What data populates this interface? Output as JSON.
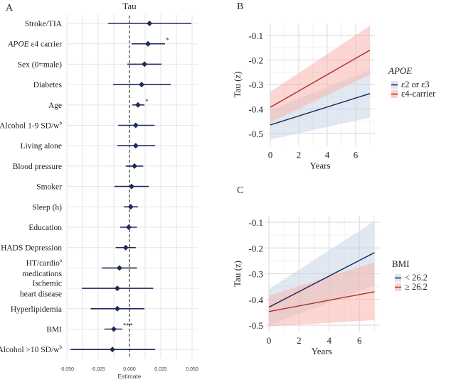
{
  "chart_data": [
    {
      "panel": "A",
      "type": "forest",
      "title": "Tau",
      "xlabel": "Estimate",
      "xlim": [
        -0.05,
        0.05
      ],
      "xticks": [
        "-0.050",
        "-0.025",
        "0.000",
        "0.025",
        "0.050"
      ],
      "xtick_values": [
        -0.05,
        -0.025,
        0,
        0.025,
        0.05
      ],
      "reference_line": 0,
      "grid": true,
      "point_color": "#1f2a5c",
      "rows": [
        {
          "label": [
            "Stroke/TIA"
          ],
          "estimate": 0.016,
          "lower": -0.017,
          "upper": 0.0495,
          "sig": ""
        },
        {
          "label_italic": "APOE",
          "label": [
            " ε4 carrier"
          ],
          "estimate": 0.0148,
          "lower": 0.0017,
          "upper": 0.0284,
          "sig": "*"
        },
        {
          "label": [
            "Sex (0=male)"
          ],
          "estimate": 0.012,
          "lower": -0.0017,
          "upper": 0.0256,
          "sig": ""
        },
        {
          "label": [
            "Diabetes"
          ],
          "estimate": 0.0097,
          "lower": -0.013,
          "upper": 0.033,
          "sig": ""
        },
        {
          "label": [
            "Age"
          ],
          "estimate": 0.0068,
          "lower": 0.0023,
          "upper": 0.012,
          "sig": "*"
        },
        {
          "label": [
            "Alcohol 1-9 SD/w"
          ],
          "sup": "b",
          "estimate": 0.005,
          "lower": -0.009,
          "upper": 0.02,
          "sig": ""
        },
        {
          "label": [
            "Living alone"
          ],
          "estimate": 0.005,
          "lower": -0.0097,
          "upper": 0.0205,
          "sig": ""
        },
        {
          "label": [
            "Blood pressure"
          ],
          "estimate": 0.004,
          "lower": -0.003,
          "upper": 0.011,
          "sig": ""
        },
        {
          "label": [
            "Smoker"
          ],
          "estimate": 0.0017,
          "lower": -0.012,
          "upper": 0.0153,
          "sig": ""
        },
        {
          "label": [
            "Sleep (h)"
          ],
          "estimate": 0.001,
          "lower": -0.0045,
          "upper": 0.0068,
          "sig": ""
        },
        {
          "label": [
            "Education"
          ],
          "estimate": -0.0006,
          "lower": -0.0074,
          "upper": 0.006,
          "sig": ""
        },
        {
          "label": [
            "HADS Depression"
          ],
          "estimate": -0.003,
          "lower": -0.011,
          "upper": 0.005,
          "sig": ""
        },
        {
          "label": [
            "HT/cardio",
            "medications"
          ],
          "sup": "a",
          "estimate": -0.008,
          "lower": -0.022,
          "upper": 0.006,
          "sig": ""
        },
        {
          "label": [
            "Ischemic",
            "heart disease"
          ],
          "estimate": -0.0097,
          "lower": -0.038,
          "upper": 0.019,
          "sig": ""
        },
        {
          "label": [
            "Hyperlipidemia"
          ],
          "estimate": -0.0097,
          "lower": -0.031,
          "upper": 0.012,
          "sig": ""
        },
        {
          "label": [
            "BMI"
          ],
          "estimate": -0.0125,
          "lower": -0.02,
          "upper": -0.0057,
          "sig": "***"
        },
        {
          "label": [
            "Alcohol >10 SD/w"
          ],
          "sup": "b",
          "estimate": -0.0136,
          "lower": -0.047,
          "upper": 0.0205,
          "sig": ""
        }
      ]
    },
    {
      "panel": "B",
      "type": "line",
      "xlabel": "Years",
      "ylabel": "Tau (z)",
      "xlim": [
        0,
        7
      ],
      "ylim": [
        -0.55,
        -0.05
      ],
      "xticks": [
        "0",
        "2",
        "4",
        "6"
      ],
      "yticks": [
        "-0.1",
        "-0.2",
        "-0.3",
        "-0.4",
        "-0.5"
      ],
      "grid": true,
      "legend_title": "APOE",
      "legend_title_italic": true,
      "legend_position": "right",
      "series": [
        {
          "name": "ε2 or ε3",
          "color": "#1f2a5c",
          "ribbon_color": "#c9d6e8",
          "x": [
            0,
            7
          ],
          "y": [
            -0.465,
            -0.337
          ],
          "lower": [
            -0.525,
            -0.435
          ],
          "upper": [
            -0.405,
            -0.24
          ]
        },
        {
          "name": "ε4-carrier",
          "color": "#b03a2e",
          "ribbon_color": "#f7b5ad",
          "x": [
            0,
            7
          ],
          "y": [
            -0.393,
            -0.16
          ],
          "lower": [
            -0.455,
            -0.26
          ],
          "upper": [
            -0.33,
            -0.06
          ]
        }
      ]
    },
    {
      "panel": "C",
      "type": "line",
      "xlabel": "Years",
      "ylabel": "Tau (z)",
      "xlim": [
        0,
        7
      ],
      "ylim": [
        -0.525,
        -0.075
      ],
      "xticks": [
        "0",
        "2",
        "4",
        "6"
      ],
      "yticks": [
        "-0.1",
        "-0.2",
        "-0.3",
        "-0.4",
        "-0.5"
      ],
      "grid": true,
      "legend_title": "BMI",
      "legend_title_italic": false,
      "legend_position": "right",
      "series": [
        {
          "name": "< 26.2",
          "color": "#1f2a5c",
          "ribbon_color": "#c9d6e8",
          "x": [
            0,
            7
          ],
          "y": [
            -0.43,
            -0.218
          ],
          "lower": [
            -0.5,
            -0.345
          ],
          "upper": [
            -0.36,
            -0.095
          ]
        },
        {
          "name": "≥ 26.2",
          "color": "#b03a2e",
          "ribbon_color": "#f7b5ad",
          "x": [
            0,
            7
          ],
          "y": [
            -0.447,
            -0.37
          ],
          "lower": [
            -0.505,
            -0.48
          ],
          "upper": [
            -0.385,
            -0.255
          ]
        }
      ]
    }
  ]
}
